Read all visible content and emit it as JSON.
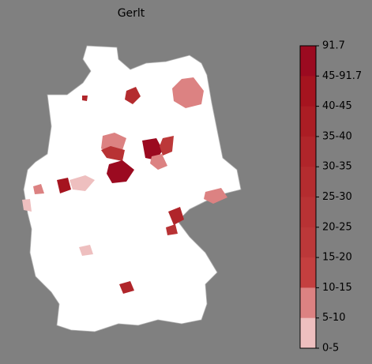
{
  "title": "Gerlt",
  "colorbar": {
    "labels": [
      "91.7",
      "45-91.7",
      "40-45",
      "35-40",
      "30-35",
      "25-30",
      "20-25",
      "15-20",
      "10-15",
      "5-10",
      "0-5"
    ],
    "colors": [
      "#9b0a20",
      "#a5141f",
      "#ab1d24",
      "#b0252a",
      "#b42c2f",
      "#b83234",
      "#bc3839",
      "#c43f3f",
      "#dc8282",
      "#eebfbf",
      "#ffffff"
    ]
  }
}
